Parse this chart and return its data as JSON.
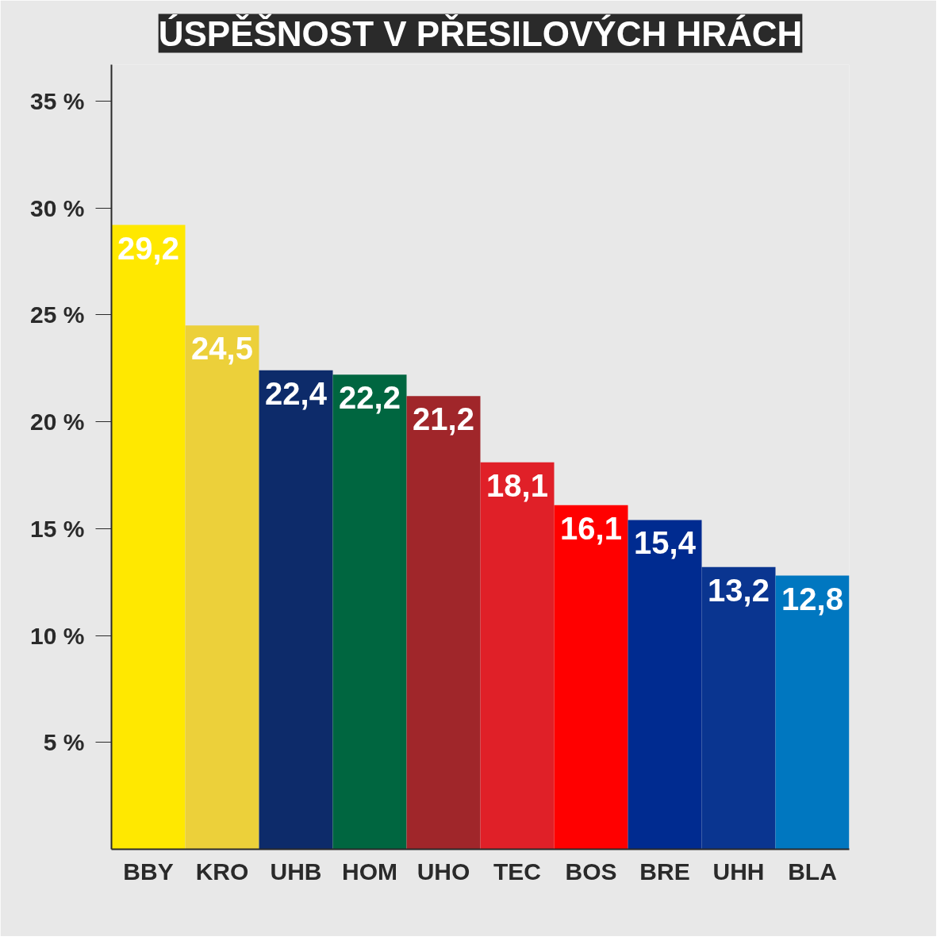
{
  "chart_data": {
    "type": "bar",
    "title": "ÚSPĚŠNOST V PŘESILOVÝCH HRÁCH",
    "categories": [
      "BBY",
      "KRO",
      "UHB",
      "HOM",
      "UHO",
      "TEC",
      "BOS",
      "BRE",
      "UHH",
      "BLA"
    ],
    "values": [
      29.2,
      24.5,
      22.4,
      22.2,
      21.2,
      18.1,
      16.1,
      15.4,
      13.2,
      12.8
    ],
    "value_labels": [
      "29,2",
      "24,5",
      "22,4",
      "22,2",
      "21,2",
      "18,1",
      "16,1",
      "15,4",
      "13,2",
      "12,8"
    ],
    "colors": [
      "#ffe800",
      "#ecd03a",
      "#0d2b6a",
      "#006640",
      "#a0262a",
      "#e02028",
      "#ff0000",
      "#002b90",
      "#0a3590",
      "#0077c0"
    ],
    "ylim": [
      0,
      36.7
    ],
    "yticks": [
      {
        "value": 5,
        "label": "5 %"
      },
      {
        "value": 10,
        "label": "10 %"
      },
      {
        "value": 15,
        "label": "15 %"
      },
      {
        "value": 20,
        "label": "20 %"
      },
      {
        "value": 25,
        "label": "25 %"
      },
      {
        "value": 30,
        "label": "30 %"
      },
      {
        "value": 35,
        "label": "35 %"
      }
    ]
  }
}
